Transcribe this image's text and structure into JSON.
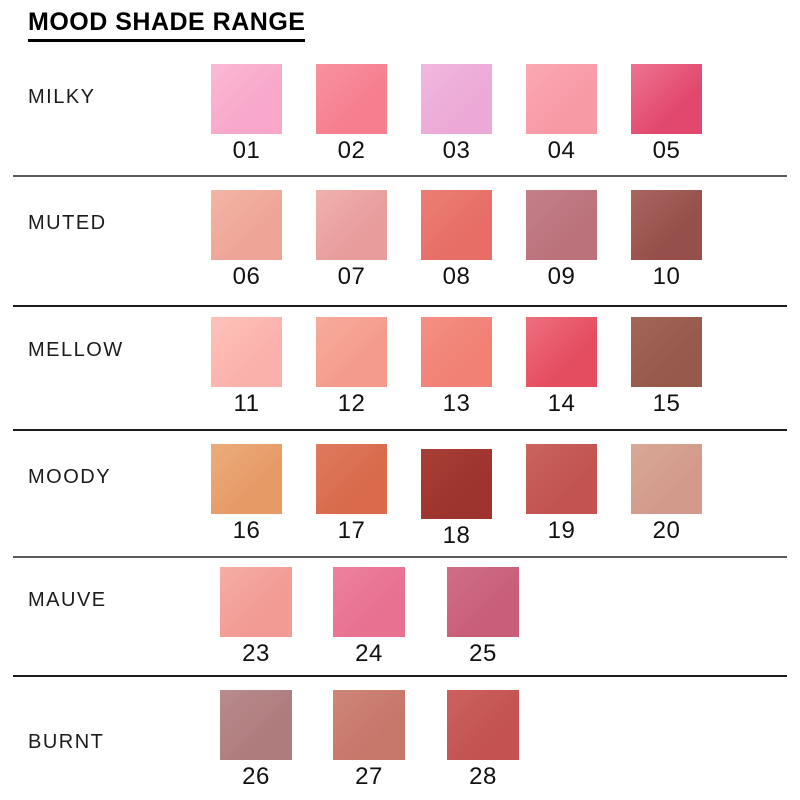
{
  "title": "MOOD SHADE RANGE",
  "rows": [
    {
      "label": "MILKY",
      "swatches": [
        {
          "num": "01",
          "color": "#F8A7CA",
          "color2": "#FBB9D5"
        },
        {
          "num": "02",
          "color": "#F67E8F",
          "color2": "#F9929E"
        },
        {
          "num": "03",
          "color": "#ECA9D7",
          "color2": "#F1B8DF"
        },
        {
          "num": "04",
          "color": "#F899A6",
          "color2": "#FAA9B2"
        },
        {
          "num": "05",
          "color": "#E2486D",
          "color2": "#EE7392"
        }
      ]
    },
    {
      "label": "MUTED",
      "swatches": [
        {
          "num": "06",
          "color": "#EEA496",
          "color2": "#F3B5A6"
        },
        {
          "num": "07",
          "color": "#E89C9C",
          "color2": "#F0B1AD"
        },
        {
          "num": "08",
          "color": "#E66E66",
          "color2": "#EB7E74"
        },
        {
          "num": "09",
          "color": "#BB727B",
          "color2": "#C38089"
        },
        {
          "num": "10",
          "color": "#96504B",
          "color2": "#A96560"
        }
      ]
    },
    {
      "label": "MELLOW",
      "swatches": [
        {
          "num": "11",
          "color": "#FBB1AB",
          "color2": "#FDC2BA"
        },
        {
          "num": "12",
          "color": "#F49B8B",
          "color2": "#F7AC9B"
        },
        {
          "num": "13",
          "color": "#F18075",
          "color2": "#F49083"
        },
        {
          "num": "14",
          "color": "#E44C60",
          "color2": "#EE6F7F"
        },
        {
          "num": "15",
          "color": "#97594C",
          "color2": "#A26557"
        }
      ]
    },
    {
      "label": "MOODY",
      "swatches": [
        {
          "num": "16",
          "color": "#E69A66",
          "color2": "#ECAC7C"
        },
        {
          "num": "17",
          "color": "#D96A4C",
          "color2": "#DF7A5D"
        },
        {
          "num": "18",
          "color": "#9D342D",
          "color2": "#A83F36"
        },
        {
          "num": "19",
          "color": "#C25350",
          "color2": "#C9635E"
        },
        {
          "num": "20",
          "color": "#D29A8B",
          "color2": "#D9A897"
        }
      ]
    },
    {
      "label": "MAUVE",
      "swatches": [
        {
          "num": "23",
          "color": "#F19B94",
          "color2": "#F5ACA4"
        },
        {
          "num": "24",
          "color": "#E87090",
          "color2": "#EC819D"
        },
        {
          "num": "25",
          "color": "#C85E78",
          "color2": "#CF6E85"
        }
      ]
    },
    {
      "label": "BURNT",
      "swatches": [
        {
          "num": "26",
          "color": "#AF7C7E",
          "color2": "#B88B8C"
        },
        {
          "num": "27",
          "color": "#C7766A",
          "color2": "#CE8679"
        },
        {
          "num": "28",
          "color": "#C35250",
          "color2": "#CB625E"
        }
      ]
    }
  ],
  "colors": {
    "background": "#ffffff",
    "divider_dark": "#1d1d1d",
    "divider_gray": "#5a5a5a",
    "title_text": "#000000",
    "label_text": "#1c1c1c",
    "number_text": "#111111"
  }
}
